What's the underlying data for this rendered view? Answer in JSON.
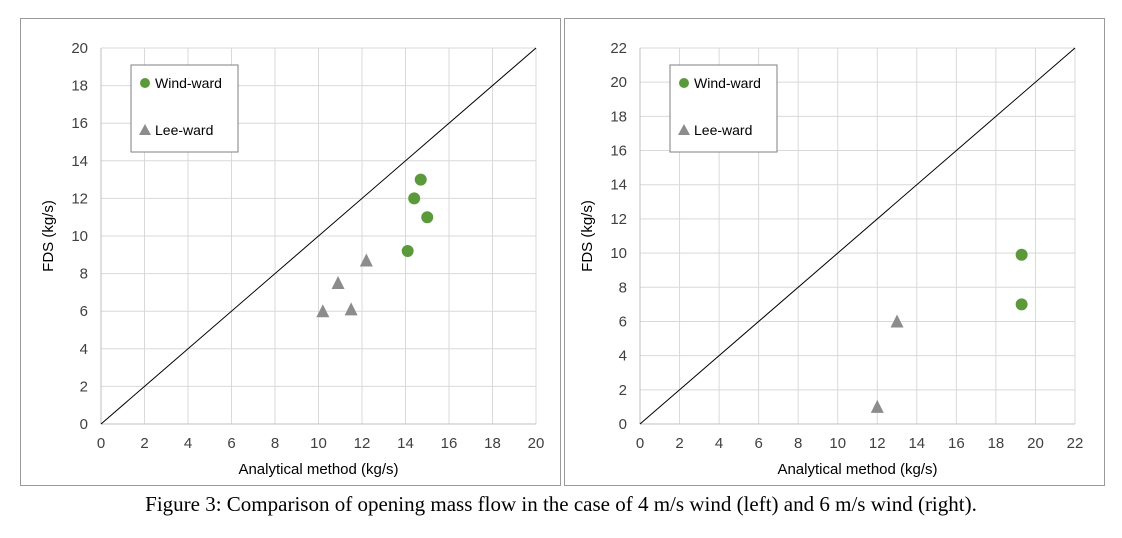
{
  "caption": "Figure 3: Comparison of opening mass flow in the case of 4 m/s wind (left) and 6 m/s wind (right).",
  "colors": {
    "windward": "#5b9a3b",
    "leeward": "#8c8c8c",
    "grid": "#d9d9d9",
    "axis": "#404040"
  },
  "chart_data": [
    {
      "type": "scatter",
      "title": "",
      "xlabel": "Analytical method (kg/s)",
      "ylabel": "FDS (kg/s)",
      "xlim": [
        0,
        20
      ],
      "ylim": [
        0,
        20
      ],
      "xticks": [
        0,
        2,
        4,
        6,
        8,
        10,
        12,
        14,
        16,
        18,
        20
      ],
      "yticks": [
        0,
        2,
        4,
        6,
        8,
        10,
        12,
        14,
        16,
        18,
        20
      ],
      "grid": true,
      "legend_position": "top-left",
      "reference_line": "y = x",
      "series": [
        {
          "name": "Wind-ward",
          "marker": "circle",
          "points": [
            [
              14.7,
              13.0
            ],
            [
              14.4,
              12.0
            ],
            [
              15.0,
              11.0
            ],
            [
              14.1,
              9.2
            ]
          ]
        },
        {
          "name": "Lee-ward",
          "marker": "triangle",
          "points": [
            [
              12.2,
              8.7
            ],
            [
              10.9,
              7.5
            ],
            [
              11.5,
              6.1
            ],
            [
              10.2,
              6.0
            ]
          ]
        }
      ]
    },
    {
      "type": "scatter",
      "title": "",
      "xlabel": "Analytical method (kg/s)",
      "ylabel": "FDS (kg/s)",
      "xlim": [
        0,
        22
      ],
      "ylim": [
        0,
        22
      ],
      "xticks": [
        0,
        2,
        4,
        6,
        8,
        10,
        12,
        14,
        16,
        18,
        20,
        22
      ],
      "yticks": [
        0,
        2,
        4,
        6,
        8,
        10,
        12,
        14,
        16,
        18,
        20,
        22
      ],
      "grid": true,
      "legend_position": "top-left",
      "reference_line": "y = x",
      "series": [
        {
          "name": "Wind-ward",
          "marker": "circle",
          "points": [
            [
              19.3,
              9.9
            ],
            [
              19.3,
              7.0
            ]
          ]
        },
        {
          "name": "Lee-ward",
          "marker": "triangle",
          "points": [
            [
              13.0,
              6.0
            ],
            [
              12.0,
              1.0
            ]
          ]
        }
      ]
    }
  ]
}
